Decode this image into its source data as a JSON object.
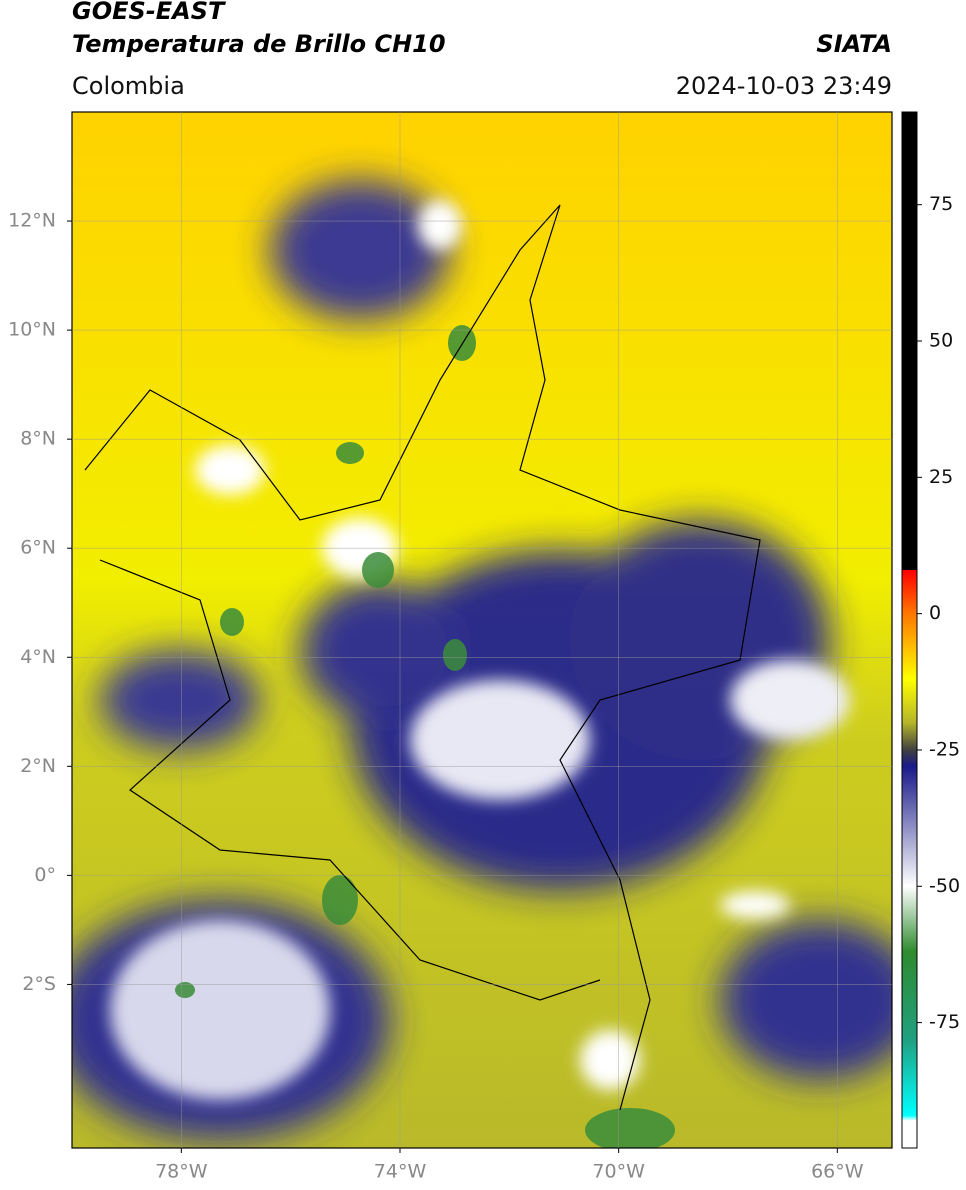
{
  "header": {
    "title": "GOES-EAST",
    "subtitle": "Temperatura de Brillo CH10",
    "region": "Colombia",
    "source": "SIATA",
    "datetime": "2024-10-03 23:49"
  },
  "map": {
    "lon_lim": [
      -80,
      -65
    ],
    "lat_lim": [
      -5,
      14
    ],
    "grid": true,
    "lon_ticks": [
      {
        "value": -78,
        "label": "78°W"
      },
      {
        "value": -74,
        "label": "74°W"
      },
      {
        "value": -70,
        "label": "70°W"
      },
      {
        "value": -66,
        "label": "66°W"
      }
    ],
    "lat_ticks": [
      {
        "value": 12,
        "label": "12°N"
      },
      {
        "value": 10,
        "label": "10°N"
      },
      {
        "value": 8,
        "label": "8°N"
      },
      {
        "value": 6,
        "label": "6°N"
      },
      {
        "value": 4,
        "label": "4°N"
      },
      {
        "value": 2,
        "label": "2°N"
      },
      {
        "value": 0,
        "label": "0°"
      },
      {
        "value": -2,
        "label": "2°S"
      }
    ]
  },
  "colorbar": {
    "lim": [
      -98,
      92
    ],
    "ticks": [
      75,
      50,
      25,
      0,
      -25,
      -50,
      -75
    ],
    "stops": [
      {
        "value": 92,
        "color": "#000000"
      },
      {
        "value": 8,
        "color": "#000000"
      },
      {
        "value": 8,
        "color": "#ff0000"
      },
      {
        "value": 0,
        "color": "#ff7700"
      },
      {
        "value": -12,
        "color": "#ffff00"
      },
      {
        "value": -20,
        "color": "#b5b52a"
      },
      {
        "value": -25,
        "color": "#404040"
      },
      {
        "value": -28,
        "color": "#1a1a8a"
      },
      {
        "value": -50,
        "color": "#ffffff"
      },
      {
        "value": -62,
        "color": "#2e8b2e"
      },
      {
        "value": -78,
        "color": "#20a080"
      },
      {
        "value": -92,
        "color": "#00ffff"
      },
      {
        "value": -93,
        "color": "#ffffff"
      },
      {
        "value": -98,
        "color": "#ffffff"
      }
    ]
  }
}
